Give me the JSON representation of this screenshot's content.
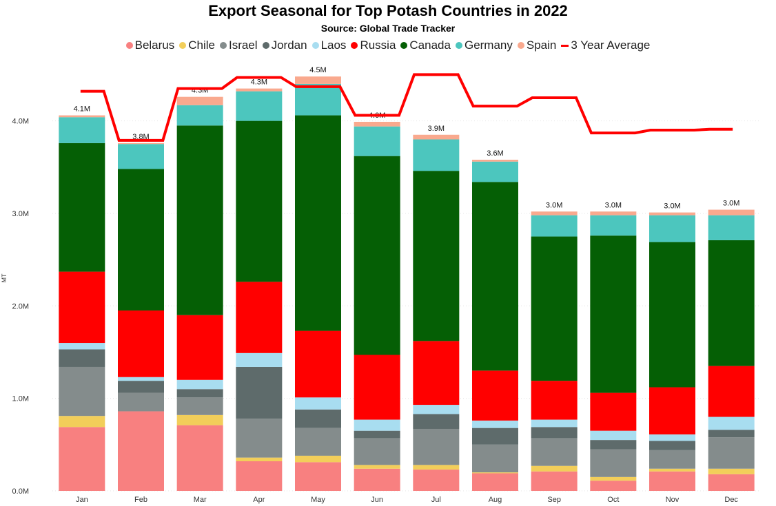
{
  "chart_data": {
    "type": "bar",
    "stacked": true,
    "title": "Export Seasonal for Top Potash Countries in 2022",
    "subtitle": "Source: Global Trade Tracker",
    "ylabel": "MT",
    "ylim": [
      0,
      4600000
    ],
    "yticks": [
      "0.0M",
      "1.0M",
      "2.0M",
      "3.0M",
      "4.0M"
    ],
    "ytick_values": [
      0,
      1000000,
      2000000,
      3000000,
      4000000
    ],
    "grid": true,
    "categories": [
      "Jan",
      "Feb",
      "Mar",
      "Apr",
      "May",
      "Jun",
      "Jul",
      "Aug",
      "Sep",
      "Oct",
      "Nov",
      "Dec"
    ],
    "totals_labels": [
      "4.1M",
      "3.8M",
      "4.3M",
      "4.3M",
      "4.5M",
      "4.0M",
      "3.9M",
      "3.6M",
      "3.0M",
      "3.0M",
      "3.0M",
      "3.0M"
    ],
    "series": [
      {
        "name": "Belarus",
        "color": "#F88080",
        "values": [
          690000,
          860000,
          710000,
          320000,
          310000,
          240000,
          230000,
          190000,
          210000,
          110000,
          210000,
          180000
        ]
      },
      {
        "name": "Chile",
        "color": "#F2CE5A",
        "values": [
          120000,
          0,
          110000,
          40000,
          70000,
          40000,
          50000,
          10000,
          60000,
          40000,
          30000,
          60000
        ]
      },
      {
        "name": "Israel",
        "color": "#848C8C",
        "values": [
          530000,
          200000,
          190000,
          420000,
          300000,
          290000,
          390000,
          300000,
          300000,
          300000,
          200000,
          340000
        ]
      },
      {
        "name": "Jordan",
        "color": "#5E6B6B",
        "values": [
          190000,
          130000,
          90000,
          560000,
          200000,
          80000,
          160000,
          180000,
          120000,
          100000,
          100000,
          80000
        ]
      },
      {
        "name": "Laos",
        "color": "#A8DDF0",
        "values": [
          70000,
          40000,
          100000,
          150000,
          130000,
          120000,
          100000,
          80000,
          80000,
          100000,
          70000,
          140000
        ]
      },
      {
        "name": "Russia",
        "color": "#FF0000",
        "values": [
          770000,
          720000,
          700000,
          770000,
          720000,
          700000,
          690000,
          540000,
          420000,
          410000,
          510000,
          550000
        ]
      },
      {
        "name": "Canada",
        "color": "#055F05",
        "values": [
          1390000,
          1530000,
          2050000,
          1740000,
          2330000,
          2150000,
          1840000,
          2040000,
          1560000,
          1700000,
          1570000,
          1360000
        ]
      },
      {
        "name": "Germany",
        "color": "#4CC6BE",
        "values": [
          280000,
          270000,
          220000,
          320000,
          340000,
          320000,
          340000,
          220000,
          230000,
          220000,
          290000,
          270000
        ]
      },
      {
        "name": "Spain",
        "color": "#F9A98E",
        "values": [
          20000,
          10000,
          90000,
          30000,
          80000,
          50000,
          50000,
          20000,
          40000,
          40000,
          30000,
          60000
        ]
      }
    ],
    "line": {
      "name": "3 Year Average",
      "color": "#FF0000",
      "values": [
        4320000,
        3790000,
        4350000,
        4470000,
        4370000,
        4060000,
        4500000,
        4160000,
        4250000,
        3870000,
        3900000,
        3910000
      ]
    }
  }
}
